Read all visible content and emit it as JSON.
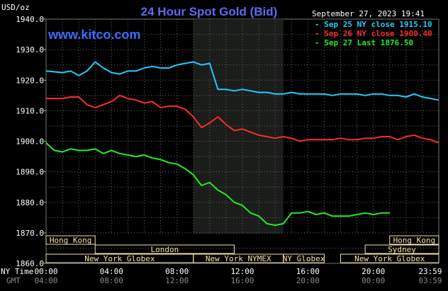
{
  "chart_data": {
    "type": "line",
    "title": "24 Hour Spot Gold (Bid)",
    "brand": "www.kitco.com",
    "timestamp": "September 27, 2023 19:41",
    "ylabel": "USD/oz",
    "ylim": [
      1860,
      1940
    ],
    "y_ticks": [
      "1940.0",
      "1930.0",
      "1920.0",
      "1910.0",
      "1900.0",
      "1890.0",
      "1880.0",
      "1870.0",
      "1860.0"
    ],
    "x_axis_label": "NY Time",
    "x_axis_label2": "GMT",
    "x_ticks": [
      "00:00",
      "04:00",
      "08:00",
      "12:00",
      "16:00",
      "20:00",
      "23:59"
    ],
    "x_ticks_gmt": [
      "04:00",
      "08:00",
      "12:00",
      "16:00",
      "20:00",
      "00:00",
      "03:59"
    ],
    "grid": true,
    "highlight_hours": [
      9,
      14.5
    ],
    "legend": [
      {
        "text": "Sep 25 NY close 1915.10",
        "color": "#22ccff"
      },
      {
        "text": "Sep 26 NY close 1900.40",
        "color": "#ff2a2a"
      },
      {
        "text": "Sep 27 Last 1876.50",
        "color": "#22ee22"
      }
    ],
    "series": [
      {
        "name": "Sep 25",
        "color": "#22ccff",
        "x": [
          0,
          1,
          1.5,
          2,
          2.5,
          3,
          3.5,
          4,
          4.5,
          5,
          5.5,
          6,
          6.5,
          7,
          7.5,
          8,
          8.5,
          9,
          9.5,
          10,
          10.5,
          11,
          11.5,
          12,
          12.5,
          13,
          13.5,
          14,
          14.5,
          15,
          15.5,
          16,
          16.5,
          17,
          17.5,
          18,
          18.5,
          19,
          19.5,
          20,
          20.5,
          21,
          21.5,
          22,
          22.5,
          23,
          23.5,
          23.99
        ],
        "values": [
          1923.0,
          1922.5,
          1923.0,
          1921.5,
          1923.0,
          1926.0,
          1924.0,
          1922.5,
          1922.0,
          1923.0,
          1923.0,
          1924.0,
          1924.5,
          1924.0,
          1924.0,
          1925.0,
          1925.5,
          1926.0,
          1925.0,
          1925.5,
          1917.0,
          1917.0,
          1916.5,
          1917.0,
          1916.5,
          1916.0,
          1916.0,
          1915.5,
          1915.5,
          1916.0,
          1915.5,
          1915.5,
          1915.5,
          1915.5,
          1915.0,
          1915.5,
          1915.5,
          1915.5,
          1915.0,
          1915.5,
          1915.5,
          1915.0,
          1915.0,
          1914.5,
          1915.5,
          1914.5,
          1914.0,
          1913.5
        ]
      },
      {
        "name": "Sep 26",
        "color": "#ff2a2a",
        "x": [
          0,
          1,
          1.5,
          2,
          2.5,
          3,
          3.5,
          4,
          4.5,
          5,
          5.5,
          6,
          6.5,
          7,
          7.5,
          8,
          8.5,
          9,
          9.5,
          10,
          10.5,
          11,
          11.5,
          12,
          12.5,
          13,
          13.5,
          14,
          14.5,
          15,
          15.5,
          16,
          16.5,
          17,
          17.5,
          18,
          18.5,
          19,
          19.5,
          20,
          20.5,
          21,
          21.5,
          22,
          22.5,
          23,
          23.5,
          23.99
        ],
        "values": [
          1914.0,
          1914.0,
          1914.5,
          1914.5,
          1912.0,
          1911.0,
          1912.0,
          1913.0,
          1915.0,
          1914.0,
          1913.5,
          1912.5,
          1913.0,
          1911.0,
          1911.5,
          1911.5,
          1910.5,
          1908.0,
          1904.5,
          1906.0,
          1908.0,
          1905.5,
          1903.5,
          1904.0,
          1903.0,
          1902.0,
          1901.5,
          1901.0,
          1901.5,
          1901.0,
          1900.0,
          1900.5,
          1900.5,
          1900.5,
          1900.5,
          1901.0,
          1900.5,
          1900.5,
          1901.0,
          1901.0,
          1901.5,
          1901.5,
          1900.5,
          1901.5,
          1902.0,
          1901.0,
          1900.5,
          1899.5
        ]
      },
      {
        "name": "Sep 27",
        "color": "#22ee22",
        "x": [
          0,
          0.5,
          1,
          1.5,
          2,
          2.5,
          3,
          3.5,
          4,
          4.5,
          5,
          5.5,
          6,
          6.5,
          7,
          7.5,
          8,
          8.5,
          9,
          9.5,
          10,
          10.5,
          11,
          11.5,
          12,
          12.5,
          13,
          13.5,
          14,
          14.5,
          15,
          15.5,
          16,
          16.5,
          17,
          17.5,
          18,
          18.5,
          19,
          19.5,
          20,
          20.5,
          21
        ],
        "values": [
          1899.5,
          1897.0,
          1896.5,
          1897.5,
          1897.0,
          1897.0,
          1897.5,
          1896.0,
          1897.0,
          1896.0,
          1895.5,
          1895.0,
          1895.5,
          1894.5,
          1894.0,
          1893.0,
          1892.5,
          1891.0,
          1889.0,
          1885.5,
          1886.5,
          1884.0,
          1882.5,
          1880.0,
          1879.0,
          1876.5,
          1875.5,
          1873.0,
          1872.5,
          1873.0,
          1876.5,
          1876.5,
          1877.0,
          1876.0,
          1876.5,
          1875.5,
          1875.5,
          1875.5,
          1876.0,
          1876.5,
          1876.0,
          1876.5,
          1876.5
        ]
      }
    ],
    "markets": [
      {
        "name": "Hong Kong",
        "start": -2,
        "end": 3
      },
      {
        "name": "London",
        "start": 3,
        "end": 11.5
      },
      {
        "name": "New York Globex",
        "start": -2,
        "end": 9
      },
      {
        "name": "New York NYMEX",
        "start": 9,
        "end": 14.5
      },
      {
        "name": "NY Globex",
        "start": 14.5,
        "end": 17
      },
      {
        "name": "Hong Kong",
        "start": 21,
        "end": 26
      },
      {
        "name": "Sydney",
        "start": 19.5,
        "end": 26
      },
      {
        "name": "New York Globex",
        "start": 18,
        "end": 26
      }
    ]
  }
}
